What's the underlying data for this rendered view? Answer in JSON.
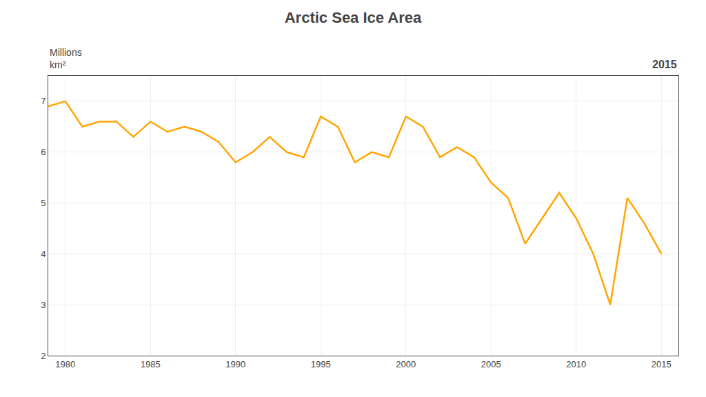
{
  "chart_data": {
    "type": "line",
    "title": "Arctic Sea Ice Area",
    "ylabel": [
      "Millions",
      "km²"
    ],
    "annotations": [
      "2015"
    ],
    "x": [
      1979,
      1980,
      1981,
      1982,
      1983,
      1984,
      1985,
      1986,
      1987,
      1988,
      1989,
      1990,
      1991,
      1992,
      1993,
      1994,
      1995,
      1996,
      1997,
      1998,
      1999,
      2000,
      2001,
      2002,
      2003,
      2004,
      2005,
      2006,
      2007,
      2008,
      2009,
      2010,
      2011,
      2012,
      2013,
      2014,
      2015
    ],
    "values": [
      6.9,
      7.0,
      6.5,
      6.6,
      6.6,
      6.3,
      6.6,
      6.4,
      6.5,
      6.4,
      6.2,
      5.8,
      6.0,
      6.3,
      6.0,
      5.9,
      6.7,
      6.5,
      5.8,
      6.0,
      5.9,
      6.7,
      6.5,
      5.9,
      6.1,
      5.9,
      5.4,
      5.1,
      4.2,
      4.7,
      5.2,
      4.7,
      4.0,
      3.0,
      5.1,
      4.6,
      4.0
    ],
    "color": "#FFA500",
    "xlim": [
      1979,
      2016
    ],
    "xticks": [
      1980,
      1985,
      1990,
      1995,
      2000,
      2005,
      2010,
      2015
    ],
    "ylim": [
      2,
      7.5
    ],
    "yticks": [
      2,
      3,
      4,
      5,
      6,
      7
    ],
    "grid": true
  }
}
